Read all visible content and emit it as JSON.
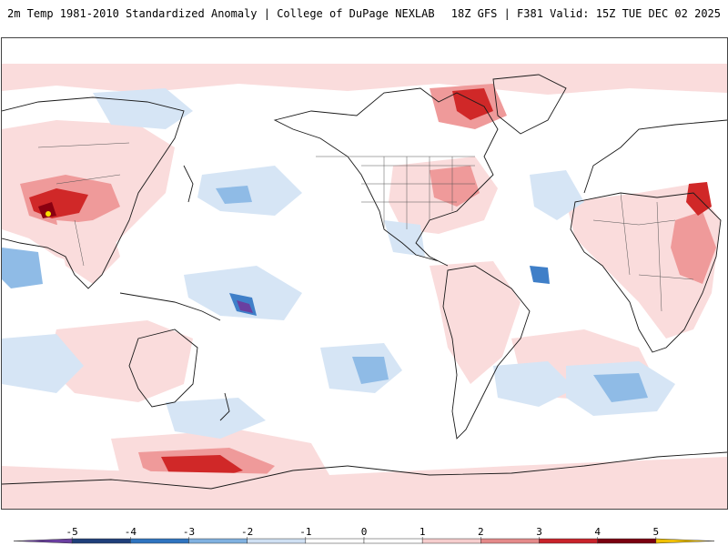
{
  "header": {
    "title": "2m Temp 1981-2010 Standardized Anomaly | College of DuPage NEXLAB",
    "run_info": "18Z GFS | F381 Valid: 15Z TUE DEC 02 2025"
  },
  "legend": {
    "tick_labels": [
      "-5",
      "-4",
      "-3",
      "-2",
      "-1",
      "0",
      "1",
      "2",
      "3",
      "4",
      "5"
    ],
    "colors": [
      "#6a3fa0",
      "#1f3f7a",
      "#2f74c0",
      "#80b1e0",
      "#cfe0f3",
      "#ffffff",
      "#ffffff",
      "#f6cdcd",
      "#e48a8a",
      "#c8222a",
      "#7a0010",
      "#f0c000"
    ]
  },
  "map": {
    "colors": {
      "light_pos": "#fadcdc",
      "mid_pos": "#ef9a9a",
      "strong_pos": "#d02828",
      "extreme_pos": "#8a0010",
      "max_pos": "#f7e000",
      "light_neg": "#d6e5f5",
      "mid_neg": "#8fbbe6",
      "strong_neg": "#3f7fc8",
      "extreme_neg": "#6a3fa0",
      "coast": "#1a1a1a"
    }
  }
}
